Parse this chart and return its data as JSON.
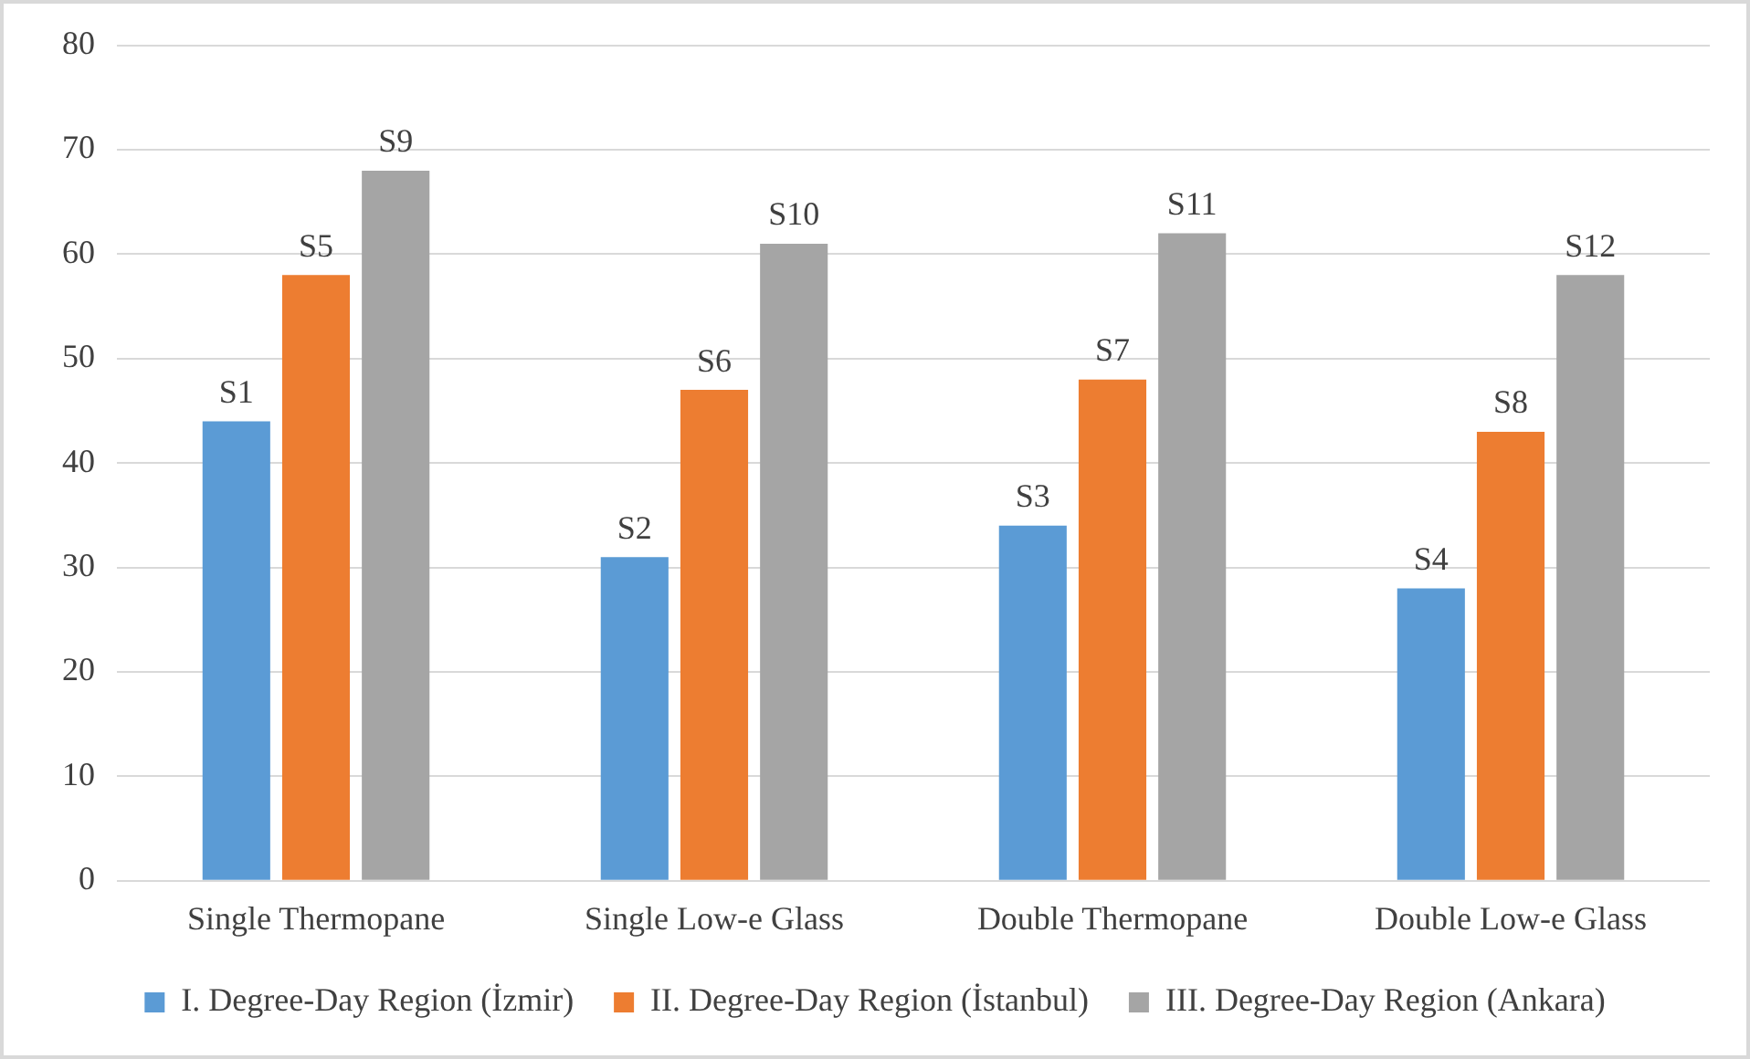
{
  "chart_data": {
    "type": "bar",
    "categories": [
      "Single Thermopane",
      "Single Low-e Glass",
      "Double Thermopane",
      "Double Low-e Glass"
    ],
    "series": [
      {
        "name": "I. Degree-Day Region (İzmir)",
        "color": "#5b9bd5",
        "values": [
          44,
          31,
          34,
          28
        ],
        "value_labels": [
          "S1",
          "S2",
          "S3",
          "S4"
        ]
      },
      {
        "name": "II. Degree-Day Region (İstanbul)",
        "color": "#ed7d31",
        "values": [
          58,
          47,
          48,
          43
        ],
        "value_labels": [
          "S5",
          "S6",
          "S7",
          "S8"
        ]
      },
      {
        "name": "III. Degree-Day Region (Ankara)",
        "color": "#a5a5a5",
        "values": [
          68,
          61,
          62,
          58
        ],
        "value_labels": [
          "S9",
          "S10",
          "S11",
          "S12"
        ]
      }
    ],
    "ylim": [
      0,
      80
    ],
    "yticks": [
      0,
      10,
      20,
      30,
      40,
      50,
      60,
      70,
      80
    ],
    "grid": "y",
    "legend": "bottom"
  }
}
